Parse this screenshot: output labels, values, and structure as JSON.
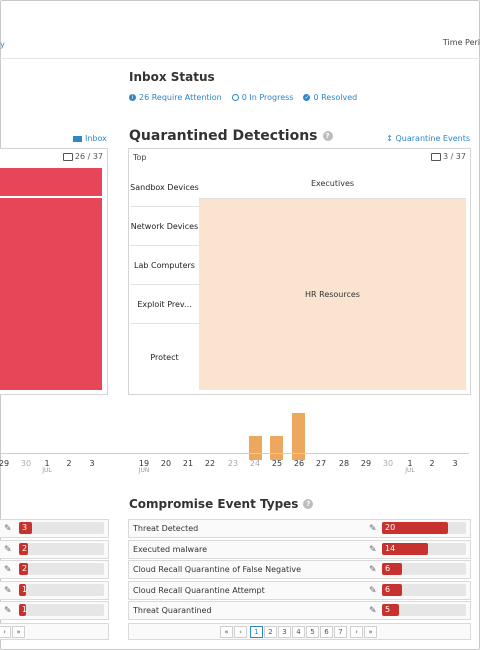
{
  "header": {
    "left_link_fragment": "y",
    "time_period_fragment": "Time Peri"
  },
  "inbox_status": {
    "title": "Inbox Status",
    "require_attention": "26 Require Attention",
    "in_progress": "0 In Progress",
    "resolved": "0 Resolved"
  },
  "left_panel": {
    "link": "Inbox",
    "count": "26 / 37"
  },
  "quarantined": {
    "title": "Quarantined Detections",
    "events_link": "Quarantine Events",
    "top_label": "Top",
    "count": "3 / 37",
    "rows": [
      "Sandbox Devices",
      "Network Devices",
      "Lab Computers",
      "Exploit Prev...",
      "Protect"
    ],
    "cells": {
      "executives": "Executives",
      "hr_resources": "HR Resources"
    }
  },
  "timeline": {
    "left_ticks": [
      "29",
      "30",
      "1",
      "2",
      "3"
    ],
    "left_sub": "JUL",
    "right_ticks": [
      "19",
      "20",
      "21",
      "22",
      "23",
      "24",
      "25",
      "26",
      "27",
      "28",
      "29",
      "30",
      "1",
      "2",
      "3"
    ],
    "jun_label": "JUN",
    "jul_label": "JUL",
    "bars": [
      {
        "day": "24",
        "relative": 0.5
      },
      {
        "day": "25",
        "relative": 0.5
      },
      {
        "day": "26",
        "relative": 1.0
      }
    ]
  },
  "left_events": {
    "values": [
      "3",
      "2",
      "2",
      "1",
      "1"
    ],
    "fractions": [
      0.15,
      0.1,
      0.1,
      0.05,
      0.05
    ]
  },
  "compromise": {
    "title": "Compromise Event Types",
    "rows": [
      {
        "label": "Threat Detected",
        "value": "20",
        "fraction": 0.78
      },
      {
        "label": "Executed malware",
        "value": "14",
        "fraction": 0.55
      },
      {
        "label": "Cloud Recall Quarantine of False Negative",
        "value": "6",
        "fraction": 0.24
      },
      {
        "label": "Cloud Recall Quarantine Attempt",
        "value": "6",
        "fraction": 0.24
      },
      {
        "label": "Threat Quarantined",
        "value": "5",
        "fraction": 0.2
      }
    ]
  },
  "pagination": {
    "left": [
      "›",
      "»"
    ],
    "right": [
      "«",
      "‹",
      "1",
      "2",
      "3",
      "4",
      "5",
      "6",
      "7",
      "›",
      "»"
    ],
    "active": "1"
  },
  "colors": {
    "accent": "#2e86c8",
    "treemap_red": "#e74558",
    "treemap_peach": "#fbe4cf",
    "bar_orange": "#eda860",
    "event_bar": "#c8322e"
  }
}
